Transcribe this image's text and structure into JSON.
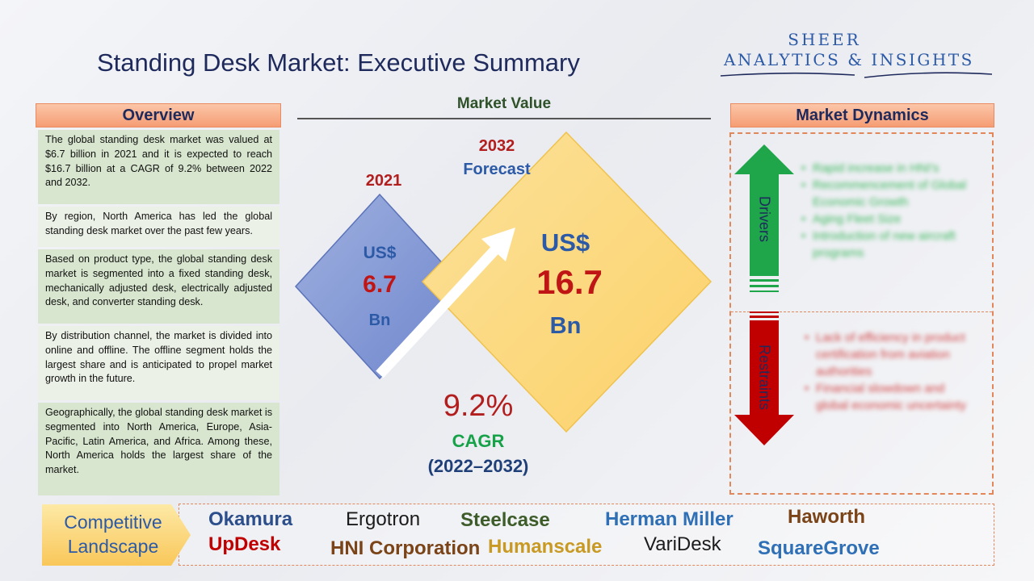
{
  "page": {
    "title": "Standing Desk Market: Executive Summary"
  },
  "logo": {
    "line1": "SHEER",
    "line2": "ANALYTICS & INSIGHTS"
  },
  "overview": {
    "header": "Overview",
    "paragraphs": [
      "The global standing desk market was valued at $6.7 billion in 2021 and it is expected to reach $16.7 billion at a CAGR of 9.2% between 2022 and 2032.",
      "By region, North America has led the global standing desk market over the past few years.",
      "Based on product type, the global standing desk market is segmented into a fixed standing desk, mechanically adjusted desk, electrically adjusted desk, and converter standing desk.",
      "By distribution channel, the market is divided into online and offline. The offline segment holds the largest share and is anticipated to propel market growth in the future.",
      "Geographically, the global standing desk market is segmented into North America, Europe, Asia-Pacific, Latin America, and Africa. Among these, North America holds the largest share of the market."
    ]
  },
  "market_value": {
    "header": "Market Value",
    "base": {
      "year": "2021",
      "currency": "US$",
      "value": "6.7",
      "unit": "Bn"
    },
    "forecast": {
      "year": "2032",
      "label": "Forecast",
      "currency": "US$",
      "value": "16.7",
      "unit": "Bn"
    },
    "cagr": {
      "value": "9.2%",
      "label": "CAGR",
      "period": "(2022–2032)"
    }
  },
  "market_dynamics": {
    "header": "Market Dynamics",
    "drivers_label": "Drivers",
    "restraints_label": "Restraints",
    "drivers": [
      "Rapid increase in HNI's",
      "Recommencement of Global Economic Growth",
      "Aging Fleet Size",
      "Introduction of new aircraft programs"
    ],
    "restraints": [
      "Lack of efficiency in product certification from aviation authorities",
      "Financial slowdown and global economic uncertainty"
    ],
    "colors": {
      "drivers": "#1fa64a",
      "restraints": "#c00000"
    }
  },
  "competitive_landscape": {
    "label_line1": "Competitive",
    "label_line2": "Landscape",
    "companies": [
      {
        "name": "Okamura",
        "color": "#2c4f8c"
      },
      {
        "name": "Ergotron",
        "color": "#1b1b1b"
      },
      {
        "name": "Steelcase",
        "color": "#3d5c2a"
      },
      {
        "name": "Herman Miller",
        "color": "#2f6fb5"
      },
      {
        "name": "Haworth",
        "color": "#7a4418"
      },
      {
        "name": "UpDesk",
        "color": "#c00000"
      },
      {
        "name": "HNI Corporation",
        "color": "#7a4418"
      },
      {
        "name": "Humanscale",
        "color": "#c89a23"
      },
      {
        "name": "VariDesk",
        "color": "#1b1b1b"
      },
      {
        "name": "SquareGrove",
        "color": "#2f6fb5"
      }
    ]
  }
}
